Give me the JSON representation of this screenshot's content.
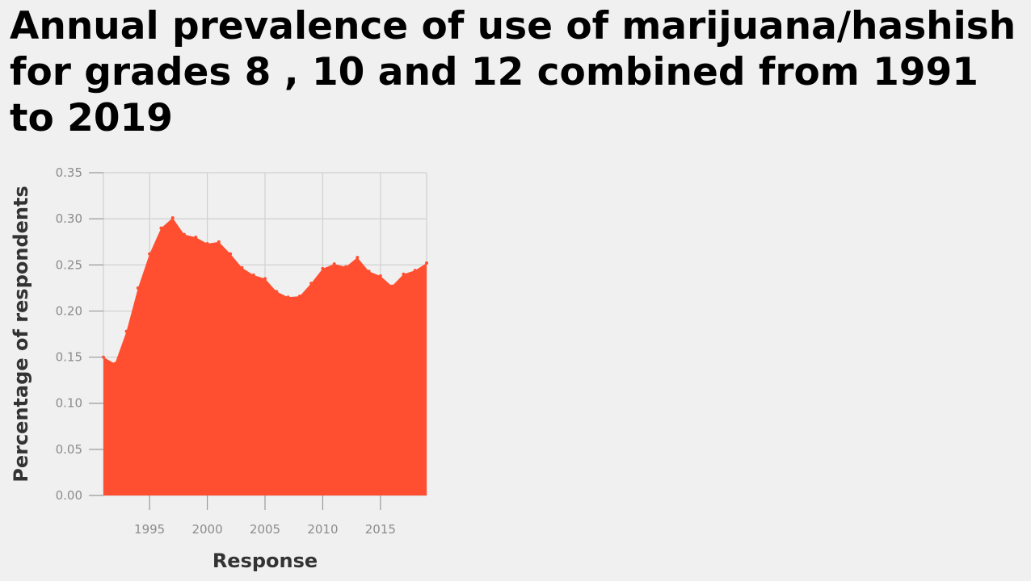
{
  "chart_data": {
    "type": "area",
    "title": "Annual prevalence of use of marijuana/hashish for grades 8 , 10 and 12 combined from 1991 to 2019",
    "xlabel": "Response",
    "ylabel": "Percentage of respondents",
    "xlim": [
      1991,
      2019
    ],
    "ylim": [
      0,
      0.35
    ],
    "x_ticks": [
      1995,
      2000,
      2005,
      2010,
      2015
    ],
    "y_ticks": [
      "0.00",
      "0.05",
      "0.10",
      "0.15",
      "0.20",
      "0.25",
      "0.30",
      "0.35"
    ],
    "grid": true,
    "legend": "none",
    "fill_color": "#ff4f30",
    "x": [
      1991,
      1992,
      1993,
      1994,
      1995,
      1996,
      1997,
      1998,
      1999,
      2000,
      2001,
      2002,
      2003,
      2004,
      2005,
      2006,
      2007,
      2008,
      2009,
      2010,
      2011,
      2012,
      2013,
      2014,
      2015,
      2016,
      2017,
      2018,
      2019
    ],
    "values": [
      0.15,
      0.143,
      0.178,
      0.225,
      0.262,
      0.29,
      0.301,
      0.283,
      0.28,
      0.273,
      0.275,
      0.262,
      0.247,
      0.239,
      0.235,
      0.221,
      0.215,
      0.216,
      0.23,
      0.246,
      0.251,
      0.248,
      0.258,
      0.243,
      0.238,
      0.227,
      0.24,
      0.244,
      0.252
    ]
  }
}
